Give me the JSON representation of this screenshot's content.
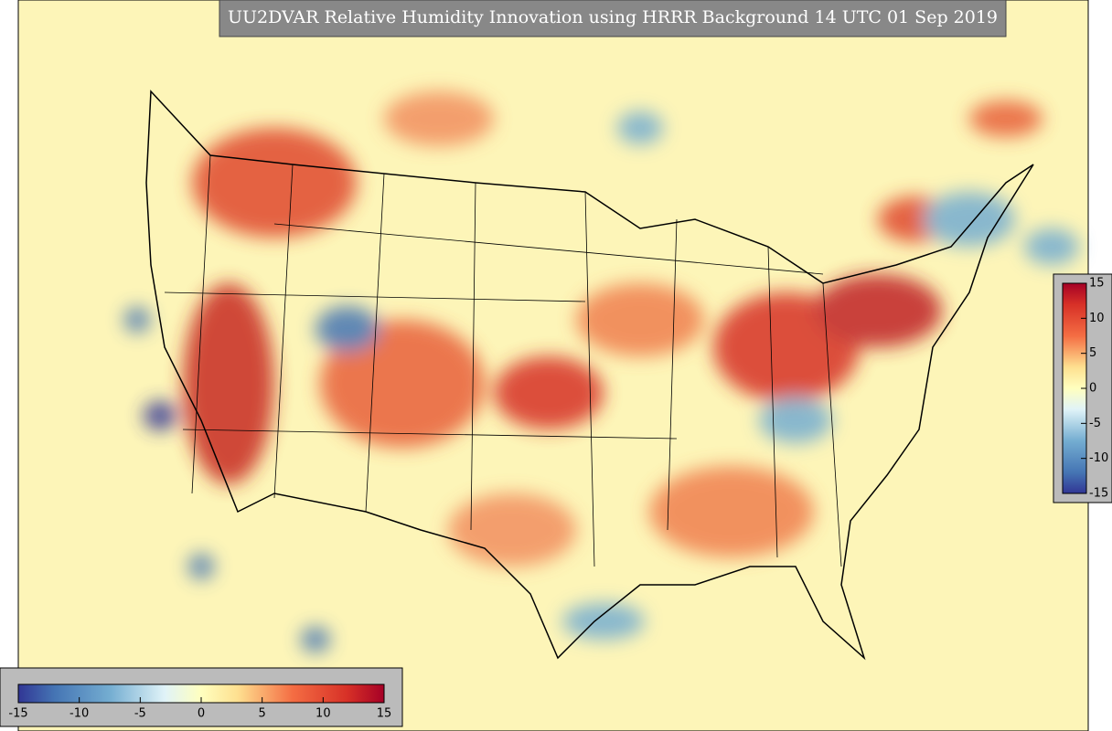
{
  "title": "UU2DVAR Relative Humidity Innovation using HRRR Background 14 UTC 01 Sep 2019",
  "colorbars": [
    {
      "orientation": "vertical",
      "lim": [
        -15,
        15
      ],
      "ticks": [
        15,
        10,
        5,
        0,
        -5,
        -10,
        -15
      ]
    },
    {
      "orientation": "horizontal",
      "lim": [
        -15,
        15
      ],
      "ticks": [
        -15,
        -10,
        -5,
        0,
        5,
        10,
        15
      ]
    }
  ]
}
